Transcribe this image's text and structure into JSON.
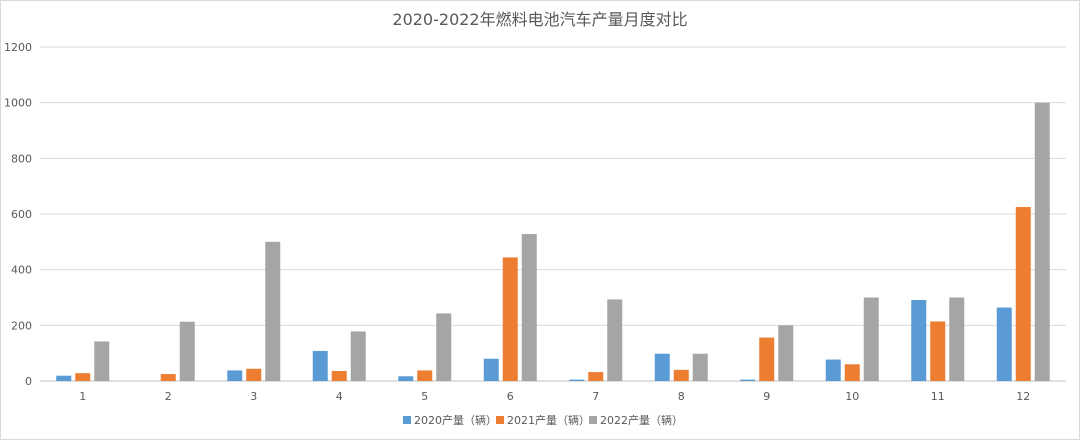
{
  "chart_data": {
    "type": "bar",
    "title": "2020-2022年燃料电池汽车产量月度对比",
    "xlabel": "",
    "ylabel": "",
    "categories": [
      "1",
      "2",
      "3",
      "4",
      "5",
      "6",
      "7",
      "8",
      "9",
      "10",
      "11",
      "12"
    ],
    "ylim": [
      0,
      1200
    ],
    "yticks": [
      0,
      200,
      400,
      600,
      800,
      1000,
      1200
    ],
    "grid": true,
    "legend_position": "bottom",
    "series": [
      {
        "name": "2020产量（辆）",
        "color": "#5b9bd5",
        "values": [
          19,
          0,
          38,
          108,
          17,
          80,
          5,
          98,
          5,
          77,
          291,
          264
        ]
      },
      {
        "name": "2021产量（辆）",
        "color": "#ed7d31",
        "values": [
          28,
          25,
          44,
          36,
          38,
          444,
          32,
          40,
          156,
          60,
          214,
          625
        ]
      },
      {
        "name": "2022产量（辆）",
        "color": "#a5a5a5",
        "values": [
          142,
          213,
          500,
          178,
          243,
          528,
          293,
          98,
          200,
          300,
          300,
          1000
        ]
      }
    ]
  }
}
